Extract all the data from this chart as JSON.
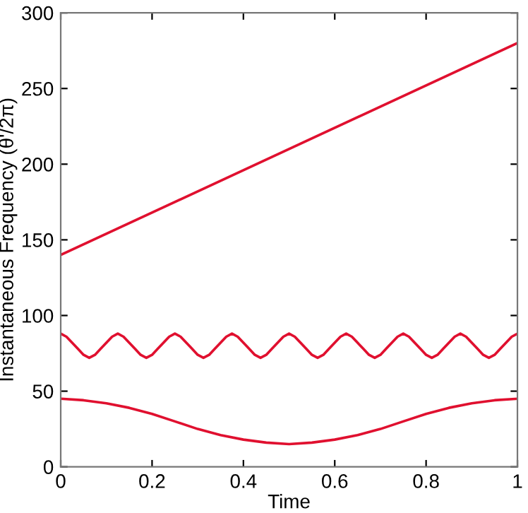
{
  "chart_data": {
    "type": "line",
    "xlabel": "Time",
    "ylabel": "Instantaneous Frequency (θ'/2π)",
    "xlim": [
      0,
      1
    ],
    "ylim": [
      0,
      300
    ],
    "xticks": [
      0,
      0.2,
      0.4,
      0.6,
      0.8,
      1
    ],
    "yticks": [
      0,
      50,
      100,
      150,
      200,
      250,
      300
    ],
    "grid": false,
    "series": [
      {
        "color": "#e0102f",
        "x": [
          0,
          1
        ],
        "values": [
          140,
          280
        ]
      },
      {
        "color": "#e0102f",
        "x": [
          0,
          0.0125,
          0.025,
          0.0375,
          0.05,
          0.0625,
          0.075,
          0.0875,
          0.1,
          0.1125,
          0.125,
          0.1375,
          0.15,
          0.1625,
          0.175,
          0.1875,
          0.2,
          0.2125,
          0.225,
          0.2375,
          0.25,
          0.2625,
          0.275,
          0.2875,
          0.3,
          0.3125,
          0.325,
          0.3375,
          0.35,
          0.3625,
          0.375,
          0.3875,
          0.4,
          0.4125,
          0.425,
          0.4375,
          0.45,
          0.4625,
          0.475,
          0.4875,
          0.5,
          0.5125,
          0.525,
          0.5375,
          0.55,
          0.5625,
          0.575,
          0.5875,
          0.6,
          0.6125,
          0.625,
          0.6375,
          0.65,
          0.6625,
          0.675,
          0.6875,
          0.7,
          0.7125,
          0.725,
          0.7375,
          0.75,
          0.7625,
          0.775,
          0.7875,
          0.8,
          0.8125,
          0.825,
          0.8375,
          0.85,
          0.8625,
          0.875,
          0.8875,
          0.9,
          0.9125,
          0.925,
          0.9375,
          0.95,
          0.9625,
          0.975,
          0.9875,
          1
        ],
        "values": [
          88,
          86,
          82,
          78,
          74,
          72,
          74,
          78,
          82,
          86,
          88,
          86,
          82,
          78,
          74,
          72,
          74,
          78,
          82,
          86,
          88,
          86,
          82,
          78,
          74,
          72,
          74,
          78,
          82,
          86,
          88,
          86,
          82,
          78,
          74,
          72,
          74,
          78,
          82,
          86,
          88,
          86,
          82,
          78,
          74,
          72,
          74,
          78,
          82,
          86,
          88,
          86,
          82,
          78,
          74,
          72,
          74,
          78,
          82,
          86,
          88,
          86,
          82,
          78,
          74,
          72,
          74,
          78,
          82,
          86,
          88,
          86,
          82,
          78,
          74,
          72,
          74,
          78,
          82,
          86,
          88
        ]
      },
      {
        "color": "#e0102f",
        "x": [
          0,
          0.05,
          0.1,
          0.15,
          0.2,
          0.25,
          0.3,
          0.35,
          0.4,
          0.45,
          0.5,
          0.55,
          0.6,
          0.65,
          0.7,
          0.75,
          0.8,
          0.85,
          0.9,
          0.95,
          1
        ],
        "values": [
          45,
          44,
          42,
          39,
          35,
          30,
          25,
          21,
          18,
          16,
          15,
          16,
          18,
          21,
          25,
          30,
          35,
          39,
          42,
          44,
          45
        ]
      }
    ]
  }
}
